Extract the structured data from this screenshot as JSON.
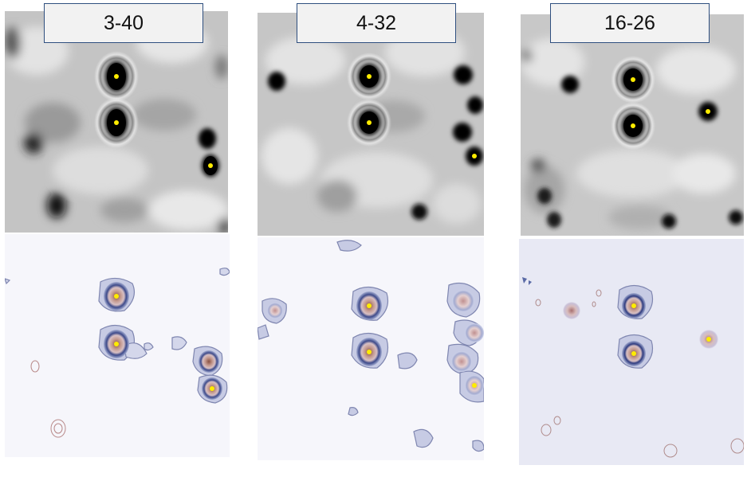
{
  "panels": [
    {
      "label": "3-40"
    },
    {
      "label": "4-32"
    },
    {
      "label": "16-26"
    }
  ],
  "colors": {
    "atom": "#000000",
    "marker": "#ffec00",
    "contour_blue": "#5a6aa6",
    "contour_red": "#b98a8a",
    "contour_bg": "#f7f7fb",
    "label_border": "#2f4f7f",
    "label_fill": "#f2f2f2"
  }
}
